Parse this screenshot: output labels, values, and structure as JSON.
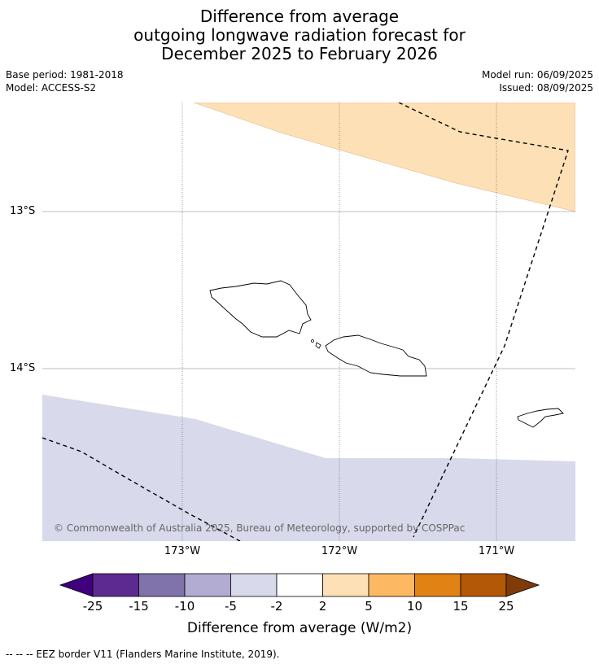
{
  "title": {
    "line1": "Difference from average",
    "line2": "outgoing longwave radiation forecast for",
    "line3": "December 2025 to February 2026"
  },
  "meta": {
    "base_period": "Base period: 1981-2018",
    "model": "Model: ACCESS-S2",
    "model_run": "Model run: 06/09/2025",
    "issued": "Issued: 08/09/2025"
  },
  "map": {
    "lat_labels": [
      "13°S",
      "14°S"
    ],
    "lon_labels": [
      "173°W",
      "172°W",
      "171°W"
    ],
    "copyright": "© Commonwealth of Australia 2025, Bureau of Meteorology, supported by COSPPac",
    "colors": {
      "positive_anomaly": "#fde0b6",
      "negative_anomaly": "#d8d9eb",
      "gridline": "#999999",
      "coast": "#000000"
    }
  },
  "colorbar": {
    "ticks": [
      "-25",
      "-15",
      "-10",
      "-5",
      "-2",
      "2",
      "5",
      "10",
      "15",
      "25"
    ],
    "colors": [
      "#3f007d",
      "#5c2a90",
      "#8073ac",
      "#b2abd2",
      "#d8daeb",
      "#ffffff",
      "#fee0b6",
      "#fdb863",
      "#e08214",
      "#b35806",
      "#7f3b08"
    ],
    "label": "Difference from average (W/m2)"
  },
  "footnote": "--  --  -- EEZ border V11 (Flanders Marine Institute, 2019)."
}
